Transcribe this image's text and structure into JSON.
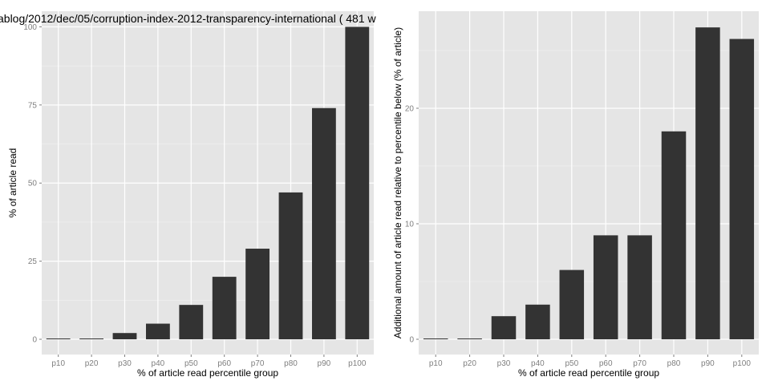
{
  "colors": {
    "panel_background": "#e5e5e5",
    "grid_major": "#ffffff",
    "grid_minor": "#f2f2f2",
    "bar_fill": "#333333",
    "tick_text": "#7f7f7f",
    "text": "#000000"
  },
  "chart_data": [
    {
      "type": "bar",
      "title": "ablog/2012/dec/05/corruption-index-2012-transparency-international ( 481 w",
      "xlabel": "% of article read percentile group",
      "ylabel": "% of article read",
      "categories": [
        "p10",
        "p20",
        "p30",
        "p40",
        "p50",
        "p60",
        "p70",
        "p80",
        "p90",
        "p100"
      ],
      "values": [
        0,
        0,
        2,
        5,
        11,
        20,
        29,
        47,
        74,
        100
      ],
      "ylim": [
        0,
        105
      ],
      "yticks": [
        0,
        25,
        50,
        75,
        100
      ],
      "ytick_labels": [
        "0",
        "25",
        "50",
        "75",
        "100"
      ],
      "grid": true,
      "legend": "none"
    },
    {
      "type": "bar",
      "title": "",
      "xlabel": "% of article read percentile group",
      "ylabel": "Additional amount of article read relative to percentile below (% of article)",
      "categories": [
        "p10",
        "p20",
        "p30",
        "p40",
        "p50",
        "p60",
        "p70",
        "p80",
        "p90",
        "p100"
      ],
      "values": [
        0,
        0,
        2,
        3,
        6,
        9,
        9,
        18,
        27,
        26
      ],
      "ylim": [
        0,
        28.4
      ],
      "yticks": [
        0,
        10,
        20
      ],
      "ytick_labels": [
        "0",
        "10",
        "20"
      ],
      "grid": true,
      "legend": "none"
    }
  ]
}
